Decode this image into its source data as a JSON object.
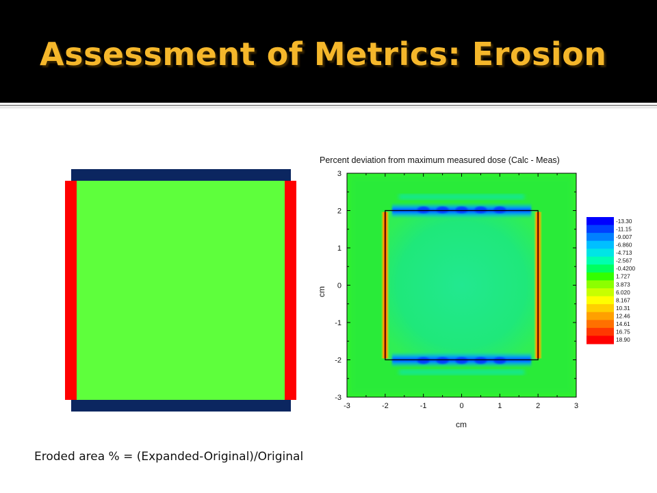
{
  "slide": {
    "title": "Assessment of Metrics: Erosion",
    "footer": "Eroded area % = (Expanded-Original)/Original",
    "title_color": "#F5B72B",
    "title_bg": "#000000"
  },
  "diagram": {
    "colors": {
      "field": "#5EFF3C",
      "side_bars": "#FF0000",
      "top_bottom_bars": "#0B2660"
    }
  },
  "chart_data": {
    "type": "heatmap",
    "title": "Percent deviation from maximum measured dose (Calc - Meas)",
    "xlabel": "cm",
    "ylabel": "cm",
    "xlim": [
      -3,
      3
    ],
    "ylim": [
      -3,
      3
    ],
    "xticks": [
      "-3",
      "-2",
      "-1",
      "0",
      "1",
      "2",
      "3"
    ],
    "yticks": [
      "3",
      "2",
      "1",
      "0",
      "-1",
      "-2",
      "-3"
    ],
    "field_square": {
      "x": [
        -2,
        2
      ],
      "y": [
        -2,
        2
      ]
    },
    "colorbar_labels": [
      "-13.30",
      "-11.15",
      "-9.007",
      "-6.860",
      "-4.713",
      "-2.567",
      "-0.4200",
      "1.727",
      "3.873",
      "6.020",
      "8.167",
      "10.31",
      "12.46",
      "14.61",
      "16.75",
      "18.90"
    ],
    "colorbar_colors": [
      "#0000FF",
      "#0040FF",
      "#0080FF",
      "#00BFFF",
      "#00E5E5",
      "#00FFB0",
      "#00FF60",
      "#33FF00",
      "#8CFF00",
      "#C8FF00",
      "#FFFF00",
      "#FFD000",
      "#FFA000",
      "#FF7000",
      "#FF3800",
      "#FF0000"
    ],
    "features": {
      "background": "#30F030",
      "outside_field": "#28E840",
      "inside_field": "#1FE87A",
      "field_edges_top_bottom": "blue (negative deviation, about -13 to -7 %)",
      "field_edges_left_right": "red (positive deviation, about +13 to +19 %)"
    },
    "grid": false
  }
}
